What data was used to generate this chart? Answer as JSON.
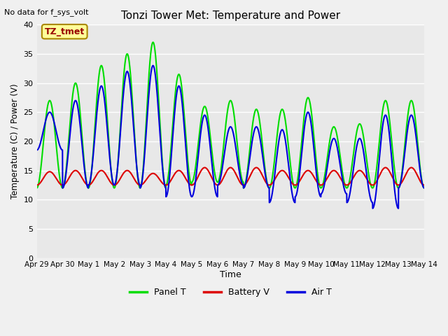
{
  "title": "Tonzi Tower Met: Temperature and Power",
  "xlabel": "Time",
  "ylabel": "Temperature (C) / Power (V)",
  "top_label": "No data for f_sys_volt",
  "legend_label": "TZ_tmet",
  "ylim": [
    0,
    40
  ],
  "xlim": [
    0,
    15
  ],
  "yticks": [
    0,
    5,
    10,
    15,
    20,
    25,
    30,
    35,
    40
  ],
  "xtick_labels": [
    "Apr 29",
    "Apr 30",
    "May 1",
    "May 2",
    "May 3",
    "May 4",
    "May 5",
    "May 6",
    "May 7",
    "May 8",
    "May 9",
    "May 10",
    "May 11",
    "May 12",
    "May 13",
    "May 14"
  ],
  "xtick_positions": [
    0,
    1,
    2,
    3,
    4,
    5,
    6,
    7,
    8,
    9,
    10,
    11,
    12,
    13,
    14,
    15
  ],
  "bg_color": "#e8e8e8",
  "grid_color": "#ffffff",
  "panel_t_color": "#00dd00",
  "battery_v_color": "#dd0000",
  "air_t_color": "#0000dd",
  "line_width": 1.5,
  "panel_night": [
    12,
    12,
    12,
    12,
    12,
    12.5,
    13,
    13,
    12,
    12,
    12,
    12,
    12,
    12,
    12,
    12
  ],
  "panel_noon": [
    27,
    30,
    33,
    35,
    37,
    31.5,
    26,
    27,
    25.5,
    25.5,
    27.5,
    22.5,
    23,
    27,
    27,
    27
  ],
  "air_night": [
    18.5,
    12,
    12.5,
    12.5,
    12,
    10.5,
    10.5,
    12.5,
    12,
    9.5,
    10.5,
    11,
    9.5,
    8.5,
    12,
    12
  ],
  "air_noon": [
    25,
    27,
    29.5,
    32,
    33,
    29.5,
    24.5,
    22.5,
    22.5,
    22,
    25,
    20.5,
    20.5,
    24.5,
    24.5,
    24.5
  ],
  "batt_night": [
    12.5,
    12.5,
    12.5,
    12.5,
    12.5,
    12.5,
    12.5,
    12.5,
    12.5,
    12.5,
    12.5,
    12.5,
    12.5,
    12.5,
    12.5,
    12.5
  ],
  "batt_noon": [
    14.8,
    15,
    15,
    15,
    14.5,
    15,
    15.5,
    15.5,
    15.5,
    15,
    15,
    15,
    15,
    15.5,
    15.5,
    15.5
  ]
}
